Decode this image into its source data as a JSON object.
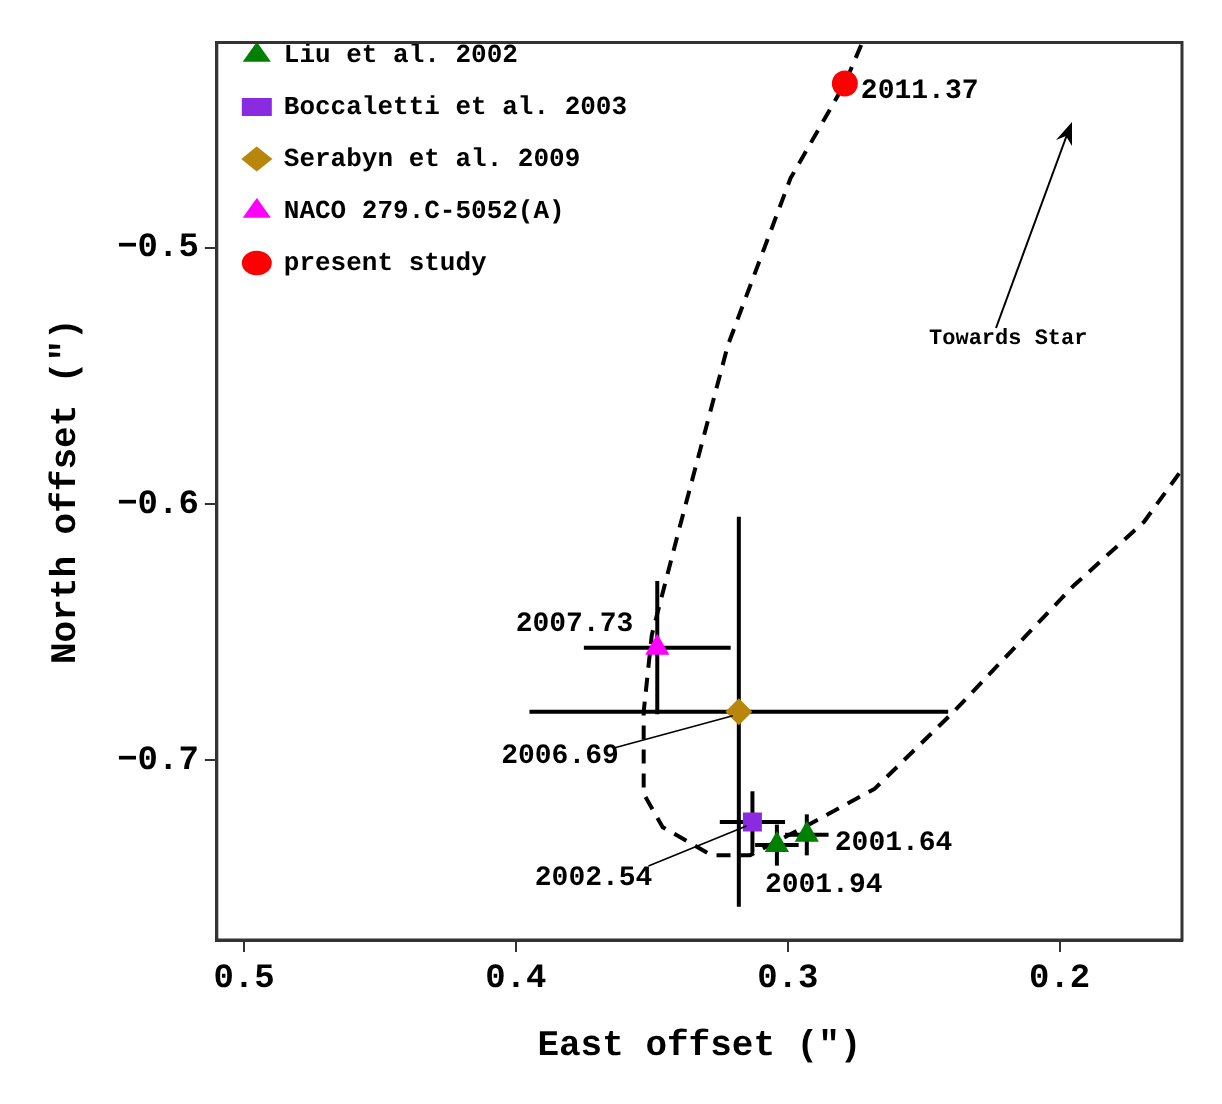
{
  "chart_data": {
    "type": "scatter",
    "xlabel": "East offset (\")",
    "ylabel": "North offset (\")",
    "xlim": [
      0.51,
      0.155
    ],
    "ylim": [
      -0.77,
      -0.42
    ],
    "xticks": [
      0.5,
      0.4,
      0.3,
      0.2
    ],
    "yticks": [
      -0.5,
      -0.6,
      -0.7
    ],
    "grid": false,
    "legend": "top left",
    "series": [
      {
        "name": "Liu et al. 2002",
        "color": "#008000",
        "marker": "triangle",
        "x": [
          0.293,
          0.304
        ],
        "values": [
          -0.729,
          -0.733
        ],
        "xerrors": [
          0.008,
          0.008
        ],
        "errors": [
          0.008,
          0.008
        ]
      },
      {
        "name": "Boccaletti et al. 2003",
        "color": "#8a2be2",
        "marker": "square",
        "x": [
          0.313
        ],
        "values": [
          -0.724
        ],
        "xerrors": [
          0.012
        ],
        "errors": [
          0.012
        ]
      },
      {
        "name": "Serabyn et al. 2009",
        "color": "#b8860b",
        "marker": "diamond",
        "x": [
          0.318
        ],
        "values": [
          -0.681
        ],
        "xerrors": [
          0.077
        ],
        "errors": [
          0.076
        ]
      },
      {
        "name": "NACO 279.C-5052(A)",
        "color": "#ff00ff",
        "marker": "triangle",
        "x": [
          0.348
        ],
        "values": [
          -0.656
        ],
        "xerrors": [
          0.027
        ],
        "errors": [
          0.026
        ]
      },
      {
        "name": "present study",
        "color": "#ff0000",
        "marker": "circle",
        "x": [
          0.279
        ],
        "values": [
          -0.436
        ]
      },
      {
        "type": "line",
        "color": "#000000",
        "marker": "none",
        "line_style": "dashed",
        "x": [
          0.273,
          0.279,
          0.299,
          0.322,
          0.34,
          0.35,
          0.353,
          0.353,
          0.346,
          0.328,
          0.314,
          0.294,
          0.268,
          0.239,
          0.195,
          0.169,
          0.156
        ],
        "values": [
          -0.421,
          -0.436,
          -0.473,
          -0.538,
          -0.61,
          -0.651,
          -0.681,
          -0.713,
          -0.726,
          -0.737,
          -0.737,
          -0.726,
          -0.711,
          -0.681,
          -0.632,
          -0.607,
          -0.588
        ]
      }
    ],
    "annotations": [
      {
        "text": "2011.37",
        "x": 0.279,
        "y": -0.436
      },
      {
        "text": "2007.73",
        "x": 0.348,
        "y": -0.656
      },
      {
        "text": "2006.69",
        "x": 0.318,
        "y": -0.681
      },
      {
        "text": "2002.54",
        "x": 0.313,
        "y": -0.724
      },
      {
        "text": "2001.64",
        "x": 0.293,
        "y": -0.729
      },
      {
        "text": "2001.94",
        "x": 0.304,
        "y": -0.733
      },
      "Towards Star"
    ]
  }
}
